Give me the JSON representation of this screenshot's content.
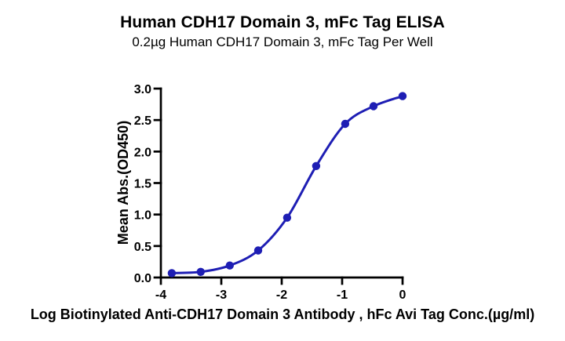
{
  "chart_data": {
    "type": "line",
    "title": "Human CDH17 Domain 3, mFc Tag ELISA",
    "subtitle": "0.2µg Human CDH17 Domain 3, mFc Tag Per Well",
    "xlabel": "Log Biotinylated Anti-CDH17 Domain 3 Antibody , hFc Avi Tag Conc.(µg/ml)",
    "ylabel": "Mean Abs.(OD450)",
    "x": [
      -3.82,
      -3.34,
      -2.86,
      -2.39,
      -1.91,
      -1.43,
      -0.95,
      -0.48,
      0
    ],
    "y": [
      0.07,
      0.09,
      0.19,
      0.43,
      0.95,
      1.77,
      2.44,
      2.72,
      2.88
    ],
    "xlim": [
      -4,
      0
    ],
    "ylim": [
      0,
      3
    ],
    "xticks": [
      -4,
      -3,
      -2,
      -1,
      0
    ],
    "xtick_labels": [
      "-4",
      "-3",
      "-2",
      "-1",
      "0"
    ],
    "yticks": [
      0,
      0.5,
      1,
      1.5,
      2,
      2.5,
      3
    ],
    "ytick_labels": [
      "0.0",
      "0.5",
      "1.0",
      "1.5",
      "2.0",
      "2.5",
      "3.0"
    ],
    "grid": false,
    "legend": "none",
    "curve_style": "smooth sigmoid (4PL-like fit) through data points",
    "marker": "circle",
    "colors": {
      "line": "#1e1eb4",
      "marker": "#1e1eb4",
      "axis": "#000000",
      "text": "#000000"
    }
  }
}
